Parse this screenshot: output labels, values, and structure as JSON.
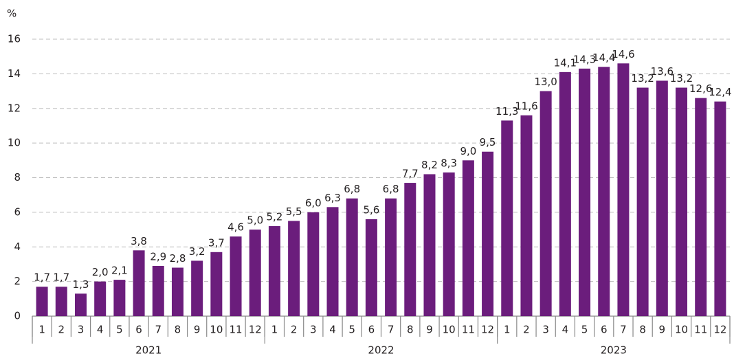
{
  "chart_data": {
    "type": "bar",
    "y_label": "%",
    "groups": [
      "2021",
      "2022",
      "2023"
    ],
    "categories": [
      "1",
      "2",
      "3",
      "4",
      "5",
      "6",
      "7",
      "8",
      "9",
      "10",
      "11",
      "12",
      "1",
      "2",
      "3",
      "4",
      "5",
      "6",
      "7",
      "8",
      "9",
      "10",
      "11",
      "12",
      "1",
      "2",
      "3",
      "4",
      "5",
      "6",
      "7",
      "8",
      "9",
      "10",
      "11",
      "12"
    ],
    "values": [
      1.7,
      1.7,
      1.3,
      2.0,
      2.1,
      3.8,
      2.9,
      2.8,
      3.2,
      3.7,
      4.6,
      5.0,
      5.2,
      5.5,
      6.0,
      6.3,
      6.8,
      5.6,
      6.8,
      7.7,
      8.2,
      8.3,
      9.0,
      9.5,
      11.3,
      11.6,
      13.0,
      14.1,
      14.3,
      14.4,
      14.6,
      13.2,
      13.6,
      13.2,
      12.6,
      12.4
    ],
    "value_labels": [
      "1,7",
      "1,7",
      "1,3",
      "2,0",
      "2,1",
      "3,8",
      "2,9",
      "2,8",
      "3,2",
      "3,7",
      "4,6",
      "5,0",
      "5,2",
      "5,5",
      "6,0",
      "6,3",
      "6,8",
      "5,6",
      "6,8",
      "7,7",
      "8,2",
      "8,3",
      "9,0",
      "9,5",
      "11,3",
      "11,6",
      "13,0",
      "14,1",
      "14,3",
      "14,4",
      "14,6",
      "13,2",
      "13,6",
      "13,2",
      "12,6",
      "12,4"
    ],
    "color": "#6b1d7c",
    "ylim": [
      0,
      16
    ],
    "yticks": [
      0,
      2,
      4,
      6,
      8,
      10,
      12,
      14,
      16
    ],
    "grid": true
  }
}
